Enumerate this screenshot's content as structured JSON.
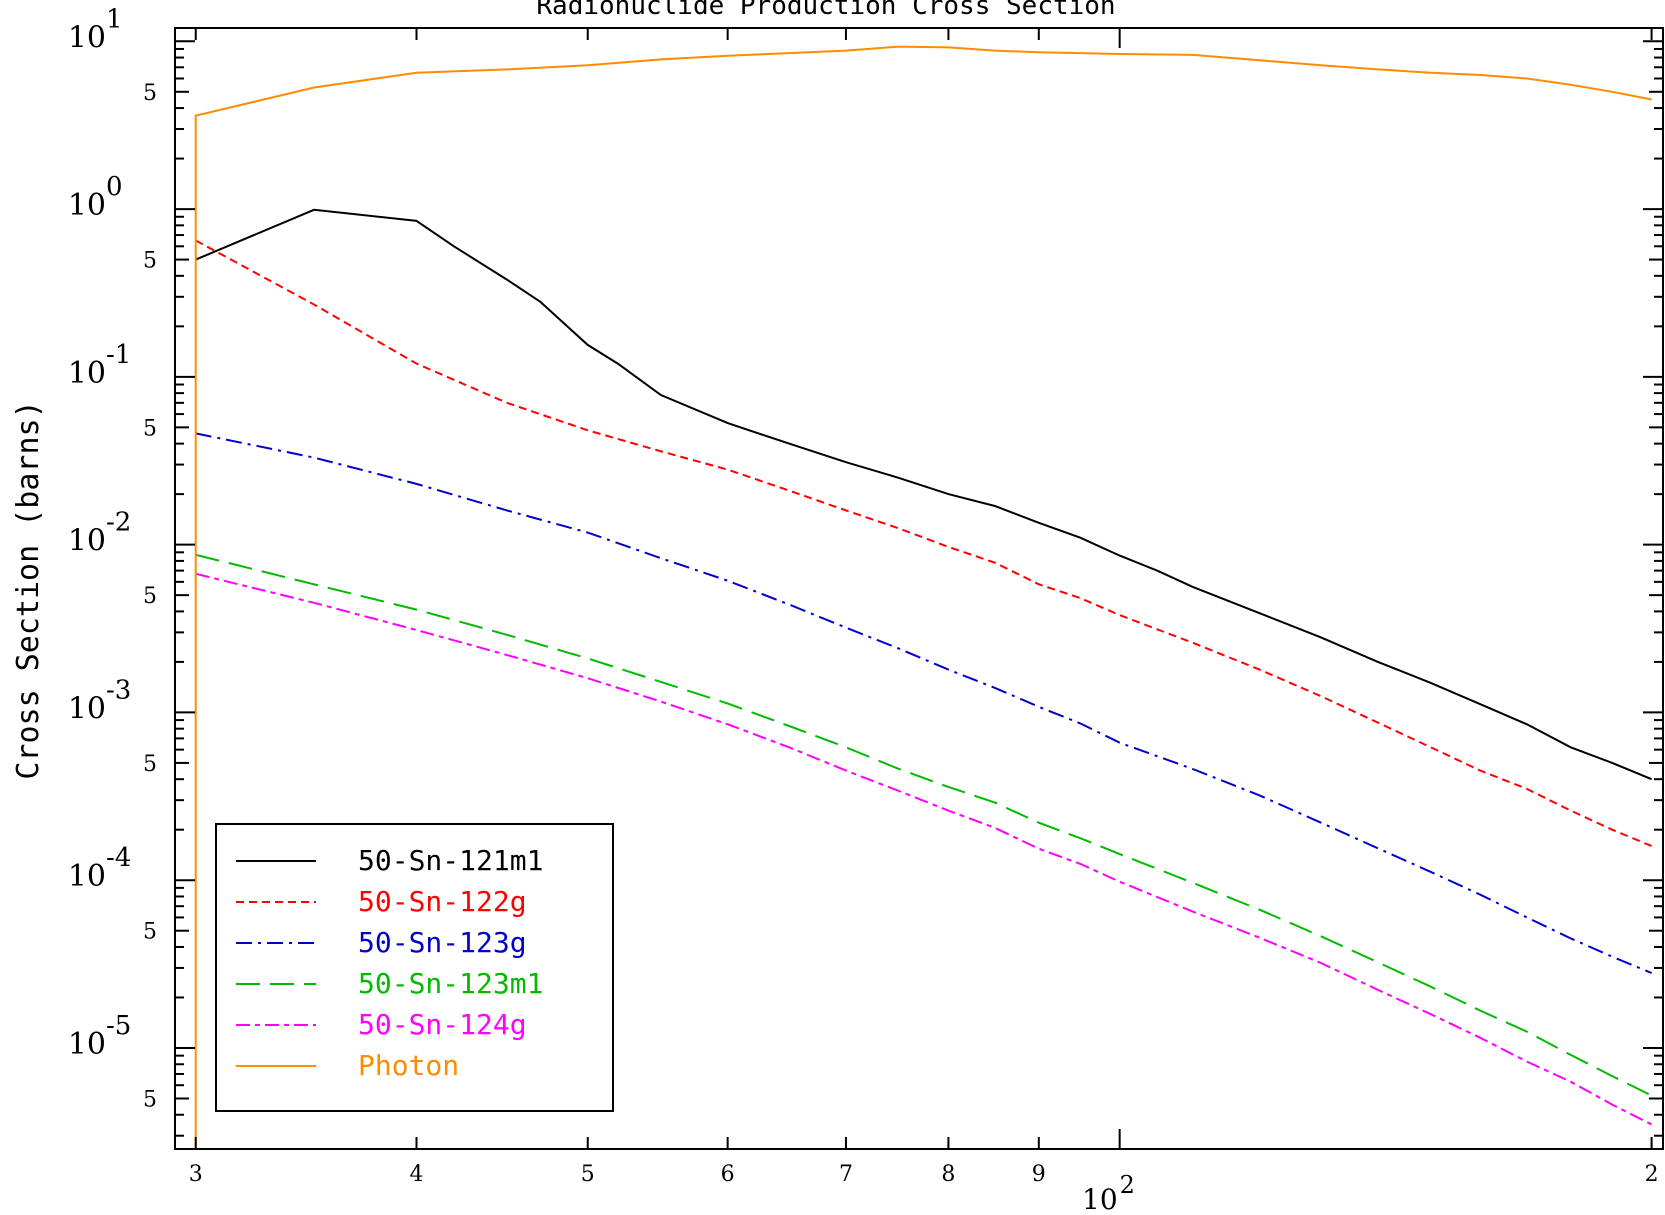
{
  "chart_data": {
    "type": "line",
    "title": "Radionuclide Production Cross Section",
    "xlabel": "",
    "ylabel": "Cross Section (barns)",
    "xscale": "log",
    "yscale": "log",
    "xlim": [
      29.2,
      203
    ],
    "ylim": [
      2.5e-06,
      12
    ],
    "grid": false,
    "legend_position": "bottom-left",
    "x_ticks": [
      {
        "value": 30,
        "label": "3"
      },
      {
        "value": 40,
        "label": "4"
      },
      {
        "value": 50,
        "label": "5"
      },
      {
        "value": 60,
        "label": "6"
      },
      {
        "value": 70,
        "label": "7"
      },
      {
        "value": 80,
        "label": "8"
      },
      {
        "value": 90,
        "label": "9"
      },
      {
        "value": 200,
        "label": "2"
      }
    ],
    "x_decade_label": {
      "base": "10",
      "exp": "2",
      "value": 100
    },
    "y_major_ticks": [
      {
        "value": 10,
        "base": "10",
        "exp": "1"
      },
      {
        "value": 1,
        "base": "10",
        "exp": "0"
      },
      {
        "value": 0.1,
        "base": "10",
        "exp": "-1"
      },
      {
        "value": 0.01,
        "base": "10",
        "exp": "-2"
      },
      {
        "value": 0.001,
        "base": "10",
        "exp": "-3"
      },
      {
        "value": 0.0001,
        "base": "10",
        "exp": "-4"
      },
      {
        "value": 1e-05,
        "base": "10",
        "exp": "-5"
      }
    ],
    "y_minor_labels": [
      {
        "value": 5,
        "label": "5"
      },
      {
        "value": 0.5,
        "label": "5"
      },
      {
        "value": 0.05,
        "label": "5"
      },
      {
        "value": 0.005,
        "label": "5"
      },
      {
        "value": 0.0005,
        "label": "5"
      },
      {
        "value": 5e-05,
        "label": "5"
      },
      {
        "value": 5e-06,
        "label": "5"
      }
    ],
    "series": [
      {
        "name": "50-Sn-121m1",
        "color": "#000000",
        "dash": "solid",
        "x": [
          30,
          35,
          40,
          42,
          45,
          47,
          50,
          52,
          55,
          60,
          65,
          70,
          75,
          80,
          85,
          90,
          95,
          100,
          105,
          110,
          120,
          130,
          140,
          150,
          160,
          170,
          180,
          190,
          200
        ],
        "y": [
          0.5,
          0.99,
          0.85,
          0.6,
          0.38,
          0.28,
          0.155,
          0.12,
          0.078,
          0.053,
          0.04,
          0.031,
          0.025,
          0.02,
          0.017,
          0.0135,
          0.011,
          0.0086,
          0.007,
          0.0056,
          0.0039,
          0.0028,
          0.002,
          0.0015,
          0.00112,
          0.00085,
          0.00062,
          0.0005,
          0.0004
        ]
      },
      {
        "name": "50-Sn-122g",
        "color": "#ff0000",
        "dash": "dashed",
        "x": [
          30,
          35,
          40,
          45,
          50,
          55,
          60,
          65,
          70,
          75,
          80,
          85,
          90,
          95,
          100,
          110,
          120,
          130,
          140,
          150,
          160,
          170,
          180,
          190,
          200
        ],
        "y": [
          0.65,
          0.27,
          0.12,
          0.07,
          0.048,
          0.036,
          0.028,
          0.021,
          0.016,
          0.0125,
          0.0097,
          0.0078,
          0.0058,
          0.0048,
          0.0038,
          0.0026,
          0.0018,
          0.00125,
          0.00087,
          0.00062,
          0.00045,
          0.00035,
          0.00026,
          0.0002,
          0.00016
        ]
      },
      {
        "name": "50-Sn-123g",
        "color": "#0000cc",
        "dash": "dashdot",
        "x": [
          30,
          35,
          40,
          45,
          50,
          55,
          60,
          65,
          70,
          75,
          80,
          85,
          90,
          95,
          100,
          110,
          120,
          130,
          140,
          150,
          160,
          170,
          180,
          190,
          200
        ],
        "y": [
          0.046,
          0.033,
          0.023,
          0.016,
          0.0118,
          0.0083,
          0.0061,
          0.0044,
          0.0032,
          0.0024,
          0.0018,
          0.0014,
          0.00108,
          0.00086,
          0.00066,
          0.00046,
          0.00032,
          0.00022,
          0.000155,
          0.000112,
          8.2e-05,
          6e-05,
          4.5e-05,
          3.5e-05,
          2.8e-05
        ]
      },
      {
        "name": "50-Sn-123m1",
        "color": "#00bb00",
        "dash": "longdash",
        "x": [
          30,
          35,
          40,
          45,
          50,
          55,
          60,
          65,
          70,
          75,
          80,
          85,
          90,
          95,
          100,
          110,
          120,
          130,
          140,
          150,
          160,
          170,
          180,
          190,
          200
        ],
        "y": [
          0.0087,
          0.0058,
          0.0041,
          0.0029,
          0.0021,
          0.00152,
          0.00113,
          0.00083,
          0.00062,
          0.00046,
          0.00036,
          0.00029,
          0.00022,
          0.000178,
          0.000143,
          9.65e-05,
          6.67e-05,
          4.63e-05,
          3.24e-05,
          2.32e-05,
          1.67e-05,
          1.25e-05,
          9.1e-06,
          6.8e-06,
          5.2e-06
        ]
      },
      {
        "name": "50-Sn-124g",
        "color": "#ff00ff",
        "dash": "dashdotlong",
        "x": [
          30,
          35,
          40,
          45,
          50,
          55,
          60,
          65,
          70,
          75,
          80,
          85,
          90,
          95,
          100,
          110,
          120,
          130,
          140,
          150,
          160,
          170,
          180,
          190,
          200
        ],
        "y": [
          0.0067,
          0.0045,
          0.0031,
          0.0022,
          0.0016,
          0.00116,
          0.00085,
          0.00062,
          0.00045,
          0.00034,
          0.00026,
          0.000205,
          0.000154,
          0.000125,
          9.8e-05,
          6.5e-05,
          4.54e-05,
          3.21e-05,
          2.22e-05,
          1.59e-05,
          1.15e-05,
          8.3e-06,
          6.3e-06,
          4.6e-06,
          3.5e-06
        ]
      },
      {
        "name": "Photon",
        "color": "#ff8c00",
        "dash": "solid",
        "x": [
          30,
          30,
          35,
          40,
          45,
          50,
          55,
          60,
          65,
          70,
          75,
          80,
          85,
          90,
          95,
          100,
          110,
          120,
          130,
          140,
          150,
          160,
          170,
          180,
          190,
          200
        ],
        "y": [
          2.5e-06,
          3.6,
          5.3,
          6.5,
          6.8,
          7.2,
          7.8,
          8.2,
          8.5,
          8.8,
          9.3,
          9.2,
          8.8,
          8.6,
          8.5,
          8.4,
          8.3,
          7.7,
          7.2,
          6.8,
          6.5,
          6.3,
          6.0,
          5.5,
          5.0,
          4.5
        ]
      }
    ]
  }
}
